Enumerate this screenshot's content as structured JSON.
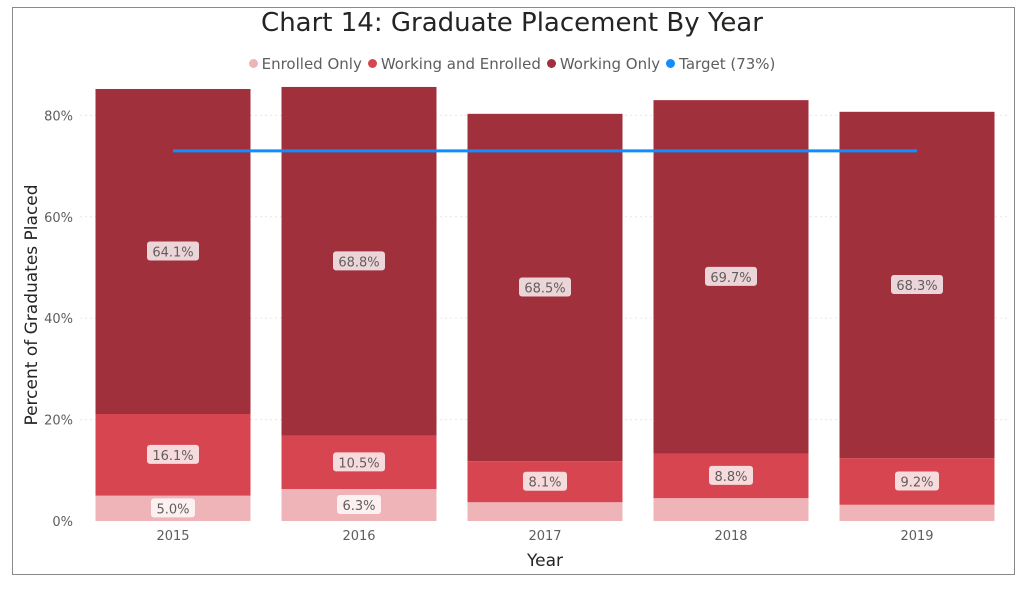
{
  "chart_data": {
    "type": "bar",
    "stacked": true,
    "title": "Chart 14: Graduate Placement By Year",
    "xlabel": "Year",
    "ylabel": "Percent of Graduates Placed",
    "categories": [
      "2015",
      "2016",
      "2017",
      "2018",
      "2019"
    ],
    "ylim": [
      0,
      0.85
    ],
    "yticks": [
      0,
      0.2,
      0.4,
      0.6,
      0.8
    ],
    "ytick_labels": [
      "0%",
      "20%",
      "40%",
      "60%",
      "80%"
    ],
    "grid": true,
    "legend_position": "top-center",
    "series": [
      {
        "name": "Enrolled Only",
        "color": "#efb4b8",
        "values": [
          0.05,
          0.063,
          0.037,
          0.045,
          0.032
        ],
        "labels": [
          "5.0%",
          "6.3%",
          "",
          "",
          ""
        ]
      },
      {
        "name": "Working and Enrolled",
        "color": "#d64550",
        "values": [
          0.161,
          0.105,
          0.081,
          0.088,
          0.092
        ],
        "labels": [
          "16.1%",
          "10.5%",
          "8.1%",
          "8.8%",
          "9.2%"
        ]
      },
      {
        "name": "Working Only",
        "color": "#a0303c",
        "values": [
          0.641,
          0.688,
          0.685,
          0.697,
          0.683
        ],
        "labels": [
          "64.1%",
          "68.8%",
          "68.5%",
          "69.7%",
          "68.3%"
        ]
      }
    ],
    "target": {
      "name": "Target (73%)",
      "value": 0.73,
      "color": "#118dff"
    }
  }
}
